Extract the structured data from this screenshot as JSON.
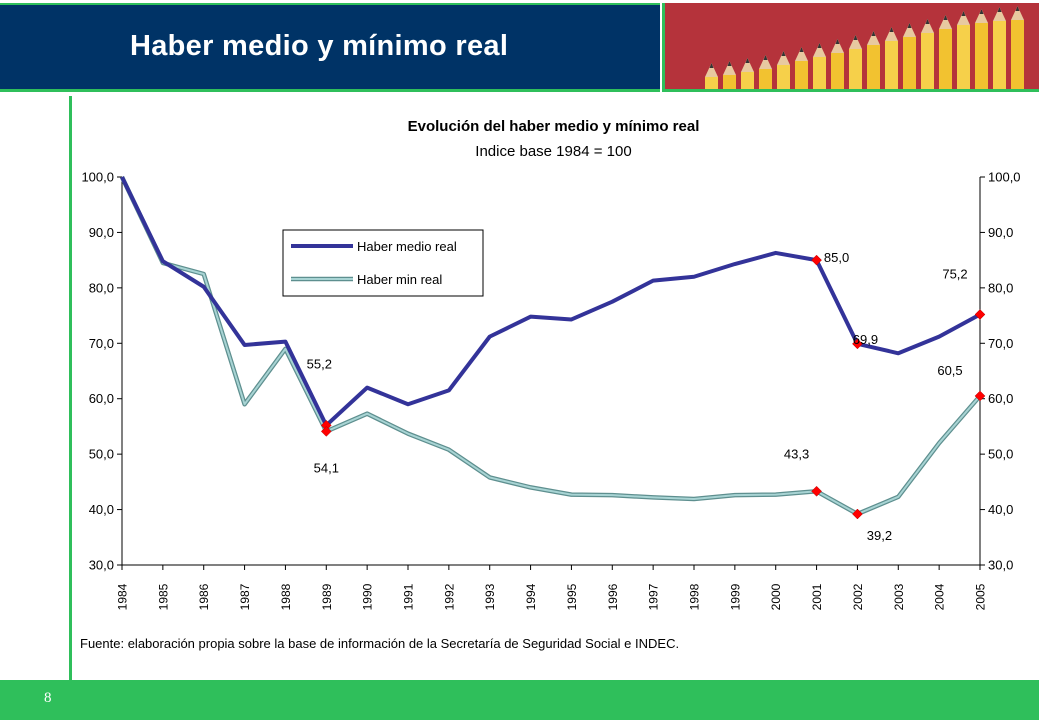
{
  "slide": {
    "title": "Haber medio y mínimo real",
    "page_number": "8",
    "source_note": "Fuente: elaboración propia sobre la base de información de la Secretaría de Seguridad Social e INDEC."
  },
  "colors": {
    "header_bg": "#003366",
    "accent_green": "#2fbf5b",
    "series_medio": "#333399",
    "series_min": "#7fb2b2",
    "marker": "#ff0000"
  },
  "chart_data": {
    "type": "line",
    "title": "Evolución del haber medio y mínimo real",
    "subtitle": "Indice base 1984 = 100",
    "x": [
      "1984",
      "1985",
      "1986",
      "1987",
      "1988",
      "1989",
      "1990",
      "1991",
      "1992",
      "1993",
      "1994",
      "1995",
      "1996",
      "1997",
      "1998",
      "1999",
      "2000",
      "2001",
      "2002",
      "2003",
      "2004",
      "2005"
    ],
    "series": [
      {
        "name": "Haber medio real",
        "color": "#333399",
        "values": [
          100.0,
          84.8,
          80.2,
          69.7,
          70.3,
          55.2,
          62.0,
          59.0,
          61.5,
          71.2,
          74.8,
          74.3,
          77.5,
          81.3,
          82.0,
          84.3,
          86.3,
          85.0,
          69.9,
          68.2,
          71.2,
          75.2
        ]
      },
      {
        "name": "Haber min real",
        "color": "#7fb2b2",
        "values": [
          100.0,
          84.5,
          82.5,
          59.0,
          69.0,
          54.1,
          57.3,
          53.7,
          50.8,
          45.8,
          44.0,
          42.7,
          42.6,
          42.2,
          41.9,
          42.6,
          42.7,
          43.3,
          39.2,
          42.3,
          52.0,
          60.5
        ]
      }
    ],
    "highlighted_points": [
      {
        "series": 0,
        "index": 5,
        "label": "55,2"
      },
      {
        "series": 0,
        "index": 17,
        "label": "85,0"
      },
      {
        "series": 0,
        "index": 18,
        "label": "69,9"
      },
      {
        "series": 0,
        "index": 21,
        "label": "75,2"
      },
      {
        "series": 1,
        "index": 5,
        "label": "54,1"
      },
      {
        "series": 1,
        "index": 17,
        "label": "43,3"
      },
      {
        "series": 1,
        "index": 18,
        "label": "39,2"
      },
      {
        "series": 1,
        "index": 21,
        "label": "60,5"
      }
    ],
    "ylim": [
      30,
      100
    ],
    "y_ticks": [
      "30,0",
      "40,0",
      "50,0",
      "60,0",
      "70,0",
      "80,0",
      "90,0",
      "100,0"
    ],
    "y_tick_values": [
      30,
      40,
      50,
      60,
      70,
      80,
      90,
      100
    ],
    "secondary_y_axis": true,
    "legend_position": "upper-left-center",
    "grid": false
  }
}
